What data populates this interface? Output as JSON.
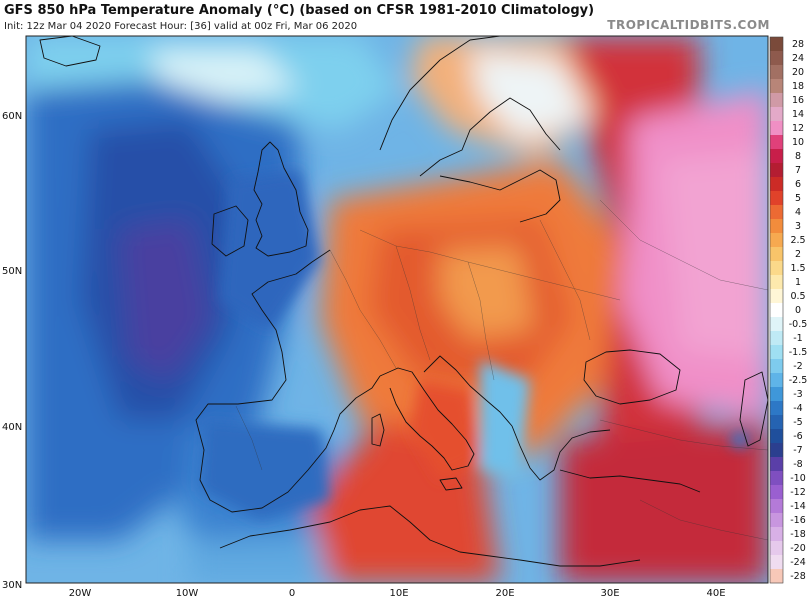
{
  "header": {
    "title": "GFS 850 hPa Temperature Anomaly (°C) (based on CFSR 1981-2010 Climatology)",
    "subtitle": "Init: 12z Mar 04 2020   Forecast Hour: [36]   valid at 00z Fri, Mar 06 2020",
    "brand": "TROPICALTIDBITS.COM"
  },
  "map": {
    "lat_labels": [
      "60N",
      "50N",
      "40N",
      "30N"
    ],
    "lon_labels": [
      "20W",
      "10W",
      "0",
      "10E",
      "20E",
      "30E",
      "40E"
    ]
  },
  "colorbar": {
    "labels": [
      "28",
      "24",
      "20",
      "18",
      "16",
      "14",
      "12",
      "10",
      "8",
      "7",
      "6",
      "5",
      "4",
      "3",
      "2.5",
      "2",
      "1.5",
      "1",
      "0.5",
      "0",
      "-0.5",
      "-1",
      "-1.5",
      "-2",
      "-2.5",
      "-3",
      "-4",
      "-5",
      "-6",
      "-7",
      "-8",
      "-10",
      "-12",
      "-14",
      "-16",
      "-18",
      "-20",
      "-24",
      "-28"
    ],
    "colors": [
      "#7a4a3a",
      "#8e5a4d",
      "#a27063",
      "#b88578",
      "#d09aa6",
      "#e3a9c8",
      "#f08fc4",
      "#e0407a",
      "#c81e4a",
      "#b41d32",
      "#cc2b26",
      "#e0422a",
      "#ec6a33",
      "#f28c3c",
      "#f6a950",
      "#f8c46a",
      "#fbd98a",
      "#fde9ad",
      "#fff6d6",
      "#ffffff",
      "#dff4f8",
      "#bfeaf5",
      "#9fdff2",
      "#7ecbee",
      "#5fb4e8",
      "#3f97d9",
      "#2d78c6",
      "#2563b2",
      "#1f4f9c",
      "#2b3f8f",
      "#5a3fa8",
      "#7f4fc0",
      "#9a5fd0",
      "#b47ad8",
      "#c896df",
      "#d8b0e6",
      "#e6c9ec",
      "#f0dcf0",
      "#f7c8b8"
    ]
  }
}
